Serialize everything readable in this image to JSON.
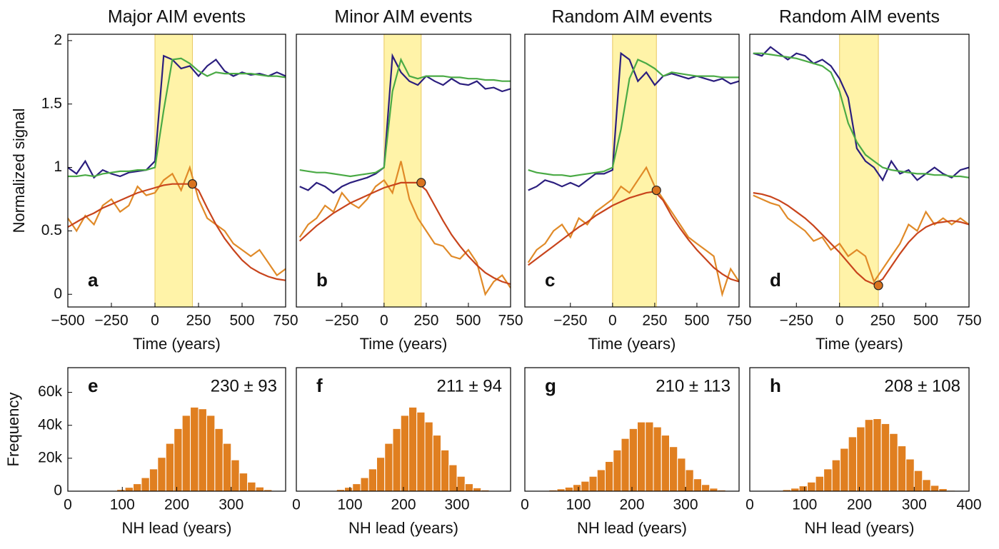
{
  "chart_data": [
    {
      "type": "line",
      "title": "Major AIM events",
      "xlabel": "Time (years)",
      "ylabel": "Normalized signal",
      "label": "a",
      "x": [
        -500,
        -450,
        -400,
        -350,
        -300,
        -250,
        -200,
        -150,
        -100,
        -50,
        0,
        50,
        100,
        150,
        200,
        250,
        300,
        350,
        400,
        450,
        500,
        550,
        600,
        650,
        700,
        750
      ],
      "series": [
        {
          "color": "#2b1e7e",
          "values": [
            1.0,
            0.95,
            1.05,
            0.92,
            0.98,
            0.95,
            0.93,
            0.96,
            0.97,
            0.98,
            1.05,
            1.88,
            1.85,
            1.78,
            1.8,
            1.72,
            1.8,
            1.85,
            1.76,
            1.72,
            1.75,
            1.73,
            1.74,
            1.72,
            1.75,
            1.72
          ]
        },
        {
          "color": "#4aaa45",
          "values": [
            0.93,
            0.93,
            0.94,
            0.93,
            0.95,
            0.96,
            0.97,
            0.97,
            0.98,
            0.98,
            1.0,
            1.45,
            1.85,
            1.86,
            1.82,
            1.76,
            1.72,
            1.75,
            1.74,
            1.74,
            1.74,
            1.74,
            1.73,
            1.72,
            1.72,
            1.71
          ]
        },
        {
          "color": "#e08a28",
          "values": [
            0.6,
            0.5,
            0.62,
            0.55,
            0.7,
            0.75,
            0.65,
            0.7,
            0.85,
            0.78,
            0.8,
            0.9,
            0.95,
            0.82,
            1.0,
            0.75,
            0.6,
            0.55,
            0.5,
            0.4,
            0.35,
            0.3,
            0.35,
            0.25,
            0.15,
            0.2
          ]
        },
        {
          "color": "#c8441c",
          "values": [
            0.53,
            0.57,
            0.61,
            0.64,
            0.68,
            0.71,
            0.74,
            0.77,
            0.8,
            0.82,
            0.84,
            0.86,
            0.87,
            0.87,
            0.87,
            0.82,
            0.68,
            0.55,
            0.44,
            0.35,
            0.27,
            0.21,
            0.17,
            0.14,
            0.12,
            0.11
          ]
        }
      ],
      "shade": [
        0,
        215
      ],
      "marker": {
        "x": 215,
        "y": 0.87,
        "color": "#d9731f"
      },
      "xlim": [
        -500,
        750
      ],
      "ylim": [
        -0.1,
        2.05
      ],
      "xticks": [
        {
          "value": -500,
          "label": "−500"
        },
        {
          "value": -250,
          "label": "−250"
        },
        0,
        250,
        500,
        750
      ],
      "yticks": [
        0,
        0.5,
        1,
        1.5,
        2
      ]
    },
    {
      "type": "line",
      "title": "Minor AIM events",
      "xlabel": "Time (years)",
      "label": "b",
      "x": [
        -500,
        -450,
        -400,
        -350,
        -300,
        -250,
        -200,
        -150,
        -100,
        -50,
        0,
        50,
        100,
        150,
        200,
        250,
        300,
        350,
        400,
        450,
        500,
        550,
        600,
        650,
        700,
        750
      ],
      "series": [
        {
          "color": "#2b1e7e",
          "values": [
            0.85,
            0.82,
            0.88,
            0.85,
            0.8,
            0.85,
            0.88,
            0.9,
            0.92,
            0.95,
            1.0,
            1.88,
            1.75,
            1.68,
            1.65,
            1.72,
            1.68,
            1.65,
            1.7,
            1.66,
            1.65,
            1.68,
            1.62,
            1.63,
            1.6,
            1.62
          ]
        },
        {
          "color": "#4aaa45",
          "values": [
            0.98,
            0.97,
            0.96,
            0.96,
            0.95,
            0.94,
            0.93,
            0.94,
            0.95,
            0.96,
            1.0,
            1.6,
            1.85,
            1.72,
            1.7,
            1.72,
            1.72,
            1.72,
            1.71,
            1.71,
            1.7,
            1.7,
            1.69,
            1.69,
            1.68,
            1.68
          ]
        },
        {
          "color": "#e08a28",
          "values": [
            0.45,
            0.55,
            0.6,
            0.7,
            0.65,
            0.8,
            0.72,
            0.68,
            0.75,
            0.85,
            0.9,
            0.8,
            1.05,
            0.75,
            0.6,
            0.5,
            0.4,
            0.38,
            0.3,
            0.28,
            0.35,
            0.25,
            0.0,
            0.1,
            0.15,
            0.05
          ]
        },
        {
          "color": "#c8441c",
          "values": [
            0.42,
            0.48,
            0.54,
            0.59,
            0.64,
            0.68,
            0.72,
            0.75,
            0.78,
            0.81,
            0.84,
            0.86,
            0.88,
            0.88,
            0.88,
            0.82,
            0.7,
            0.58,
            0.47,
            0.38,
            0.3,
            0.23,
            0.17,
            0.13,
            0.1,
            0.08
          ]
        }
      ],
      "shade": [
        0,
        220
      ],
      "marker": {
        "x": 220,
        "y": 0.88,
        "color": "#d9731f"
      },
      "xlim": [
        -520,
        750
      ],
      "ylim": [
        -0.1,
        2.05
      ],
      "xticks": [
        {
          "value": -250,
          "label": "−250"
        },
        0,
        250,
        500,
        750
      ]
    },
    {
      "type": "line",
      "title": "Random AIM events",
      "xlabel": "Time (years)",
      "label": "c",
      "x": [
        -500,
        -450,
        -400,
        -350,
        -300,
        -250,
        -200,
        -150,
        -100,
        -50,
        0,
        50,
        100,
        150,
        200,
        250,
        300,
        350,
        400,
        450,
        500,
        550,
        600,
        650,
        700,
        750
      ],
      "series": [
        {
          "color": "#2b1e7e",
          "values": [
            0.82,
            0.85,
            0.9,
            0.88,
            0.85,
            0.88,
            0.85,
            0.9,
            0.95,
            0.95,
            0.98,
            1.9,
            1.85,
            1.68,
            1.75,
            1.65,
            1.72,
            1.74,
            1.72,
            1.7,
            1.72,
            1.7,
            1.68,
            1.7,
            1.66,
            1.68
          ]
        },
        {
          "color": "#4aaa45",
          "values": [
            0.98,
            0.96,
            0.95,
            0.94,
            0.94,
            0.93,
            0.94,
            0.95,
            0.96,
            0.97,
            1.0,
            1.3,
            1.7,
            1.85,
            1.82,
            1.78,
            1.72,
            1.75,
            1.74,
            1.73,
            1.72,
            1.72,
            1.72,
            1.71,
            1.71,
            1.71
          ]
        },
        {
          "color": "#e08a28",
          "values": [
            0.25,
            0.35,
            0.4,
            0.5,
            0.55,
            0.45,
            0.6,
            0.55,
            0.65,
            0.7,
            0.75,
            0.85,
            0.8,
            0.9,
            1.0,
            0.85,
            0.75,
            0.65,
            0.55,
            0.45,
            0.4,
            0.35,
            0.3,
            0.0,
            0.2,
            0.1
          ]
        },
        {
          "color": "#c8441c",
          "values": [
            0.23,
            0.28,
            0.33,
            0.38,
            0.43,
            0.48,
            0.53,
            0.57,
            0.62,
            0.66,
            0.7,
            0.73,
            0.76,
            0.78,
            0.8,
            0.81,
            0.74,
            0.62,
            0.52,
            0.43,
            0.35,
            0.28,
            0.21,
            0.16,
            0.12,
            0.1
          ]
        }
      ],
      "shade": [
        0,
        260
      ],
      "marker": {
        "x": 260,
        "y": 0.82,
        "color": "#d9731f"
      },
      "xlim": [
        -520,
        750
      ],
      "ylim": [
        -0.1,
        2.05
      ],
      "xticks": [
        {
          "value": -250,
          "label": "−250"
        },
        0,
        250,
        500,
        750
      ]
    },
    {
      "type": "line",
      "title": "Random AIM events",
      "xlabel": "Time (years)",
      "label": "d",
      "x": [
        -500,
        -450,
        -400,
        -350,
        -300,
        -250,
        -200,
        -150,
        -100,
        -50,
        0,
        50,
        100,
        150,
        200,
        250,
        300,
        350,
        400,
        450,
        500,
        550,
        600,
        650,
        700,
        750
      ],
      "series": [
        {
          "color": "#2b1e7e",
          "values": [
            1.9,
            1.88,
            1.95,
            1.9,
            1.85,
            1.9,
            1.88,
            1.82,
            1.85,
            1.8,
            1.7,
            1.55,
            1.15,
            1.05,
            1.0,
            0.9,
            1.05,
            0.95,
            0.98,
            0.9,
            0.95,
            1.0,
            0.95,
            0.92,
            0.98,
            1.0
          ]
        },
        {
          "color": "#4aaa45",
          "values": [
            1.9,
            1.9,
            1.89,
            1.88,
            1.87,
            1.86,
            1.84,
            1.82,
            1.8,
            1.75,
            1.6,
            1.35,
            1.2,
            1.1,
            1.05,
            1.0,
            0.98,
            0.97,
            0.96,
            0.95,
            0.95,
            0.94,
            0.94,
            0.93,
            0.93,
            0.92
          ]
        },
        {
          "color": "#e08a28",
          "values": [
            0.78,
            0.75,
            0.72,
            0.7,
            0.6,
            0.55,
            0.5,
            0.42,
            0.45,
            0.35,
            0.4,
            0.3,
            0.35,
            0.3,
            0.1,
            0.2,
            0.3,
            0.4,
            0.55,
            0.5,
            0.65,
            0.55,
            0.6,
            0.55,
            0.6,
            0.55
          ]
        },
        {
          "color": "#c8441c",
          "values": [
            0.8,
            0.79,
            0.77,
            0.74,
            0.7,
            0.65,
            0.6,
            0.54,
            0.47,
            0.4,
            0.33,
            0.25,
            0.17,
            0.11,
            0.08,
            0.12,
            0.22,
            0.32,
            0.41,
            0.48,
            0.53,
            0.56,
            0.57,
            0.58,
            0.57,
            0.55
          ]
        }
      ],
      "shade": [
        0,
        225
      ],
      "marker": {
        "x": 225,
        "y": 0.07,
        "color": "#d9731f"
      },
      "xlim": [
        -520,
        750
      ],
      "ylim": [
        -0.1,
        2.05
      ],
      "xticks": [
        {
          "value": -250,
          "label": "−250"
        },
        0,
        250,
        500,
        750
      ]
    },
    {
      "type": "histogram",
      "xlabel": "NH lead (years)",
      "ylabel": "Frequency",
      "label": "e",
      "annotation": "230 ± 93",
      "color": "#e07f20",
      "bins": [
        0,
        15,
        30,
        45,
        60,
        75,
        90,
        105,
        120,
        135,
        150,
        165,
        180,
        195,
        210,
        225,
        240,
        255,
        270,
        285,
        300,
        315,
        330,
        345,
        360,
        375,
        390
      ],
      "values": [
        0,
        0,
        0,
        0,
        100,
        400,
        1000,
        2300,
        4500,
        8200,
        13500,
        20500,
        29000,
        38000,
        46000,
        51000,
        50000,
        46000,
        38000,
        29000,
        19000,
        11000,
        5500,
        2500,
        900,
        200
      ],
      "xlim": [
        0,
        400
      ],
      "ylim": [
        0,
        75000
      ],
      "xticks": [
        0,
        100,
        200,
        300
      ],
      "yticks": [
        0,
        {
          "value": 20000,
          "label": "20k"
        },
        {
          "value": 40000,
          "label": "40k"
        },
        {
          "value": 60000,
          "label": "60k"
        }
      ]
    },
    {
      "type": "histogram",
      "xlabel": "NH lead (years)",
      "label": "f",
      "annotation": "211 ± 94",
      "color": "#e07f20",
      "bins": [
        0,
        15,
        30,
        45,
        60,
        75,
        90,
        105,
        120,
        135,
        150,
        165,
        180,
        195,
        210,
        225,
        240,
        255,
        270,
        285,
        300,
        315,
        330,
        345,
        360,
        375,
        390
      ],
      "values": [
        0,
        0,
        0,
        100,
        400,
        1000,
        2300,
        4500,
        8200,
        13500,
        20500,
        29000,
        38000,
        46000,
        51000,
        48000,
        42000,
        34000,
        25000,
        16000,
        9000,
        4500,
        2000,
        700,
        200,
        0
      ],
      "xlim": [
        0,
        400
      ],
      "ylim": [
        0,
        75000
      ],
      "xticks": [
        0,
        100,
        200,
        300
      ]
    },
    {
      "type": "histogram",
      "xlabel": "NH lead (years)",
      "label": "g",
      "annotation": "210 ± 113",
      "color": "#e07f20",
      "bins": [
        0,
        15,
        30,
        45,
        60,
        75,
        90,
        105,
        120,
        135,
        150,
        165,
        180,
        195,
        210,
        225,
        240,
        255,
        270,
        285,
        300,
        315,
        330,
        345,
        360,
        375,
        390
      ],
      "values": [
        0,
        100,
        300,
        700,
        1400,
        2400,
        4000,
        6000,
        9000,
        13000,
        18000,
        25000,
        32000,
        38000,
        42000,
        42000,
        39000,
        34000,
        27000,
        20000,
        13000,
        7500,
        4000,
        1800,
        700,
        200
      ],
      "xlim": [
        0,
        400
      ],
      "ylim": [
        0,
        75000
      ],
      "xticks": [
        0,
        100,
        200,
        300
      ]
    },
    {
      "type": "histogram",
      "xlabel": "NH lead (years)",
      "label": "h",
      "annotation": "208 ± 108",
      "color": "#e07f20",
      "bins": [
        0,
        15,
        30,
        45,
        60,
        75,
        90,
        105,
        120,
        135,
        150,
        165,
        180,
        195,
        210,
        225,
        240,
        255,
        270,
        285,
        300,
        315,
        330,
        345,
        360,
        375,
        390
      ],
      "values": [
        0,
        0,
        100,
        400,
        900,
        1800,
        3200,
        5500,
        9000,
        13500,
        19000,
        26000,
        33000,
        39000,
        43500,
        44000,
        41000,
        35000,
        27500,
        19500,
        12500,
        7000,
        3500,
        1500,
        500,
        100
      ],
      "xlim": [
        0,
        400
      ],
      "ylim": [
        0,
        75000
      ],
      "xticks": [
        0,
        100,
        200,
        300,
        400
      ]
    }
  ]
}
